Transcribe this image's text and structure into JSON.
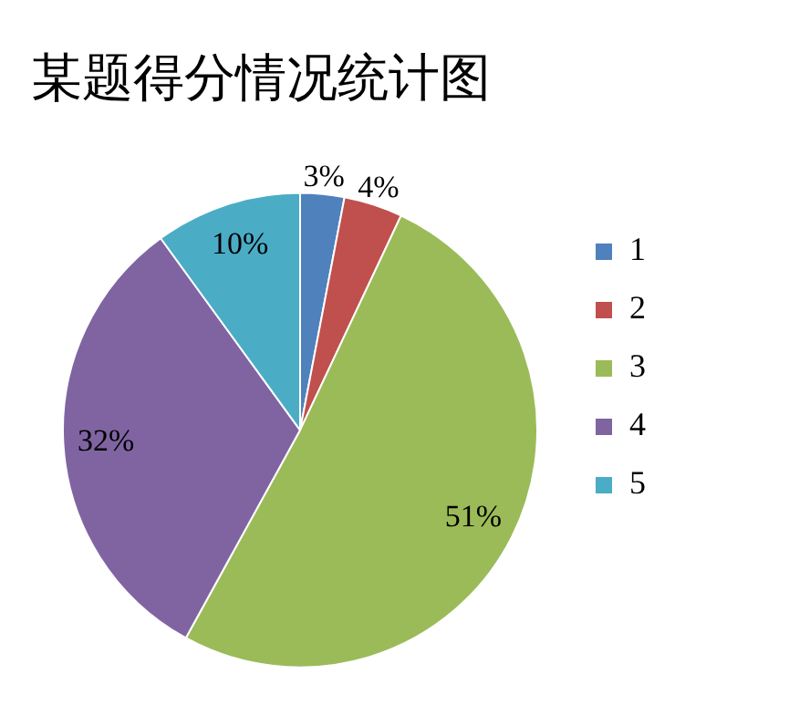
{
  "chart_data": {
    "type": "pie",
    "title": "某题得分情况统计图",
    "categories": [
      "1",
      "2",
      "3",
      "4",
      "5"
    ],
    "values": [
      3,
      4,
      51,
      32,
      10
    ],
    "value_labels": [
      "3%",
      "4%",
      "51%",
      "32%",
      "10%"
    ],
    "colors": [
      "#4f81bd",
      "#c0504d",
      "#9bbb59",
      "#8064a2",
      "#4bacc6"
    ],
    "legend": "right"
  }
}
